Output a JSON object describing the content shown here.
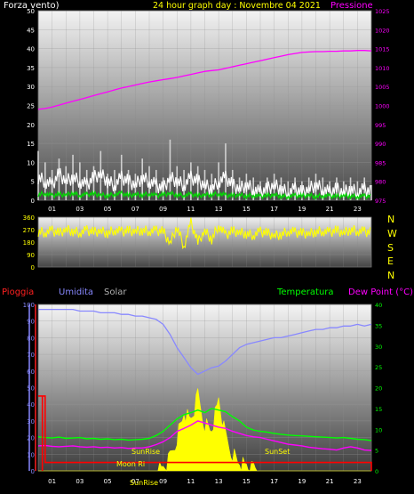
{
  "header": {
    "wind_label": "Forza vento)",
    "title": "24 hour graph day : Novembre 04 2021",
    "pressure_label": "Pressione"
  },
  "x_ticks": [
    "01",
    "03",
    "05",
    "07",
    "09",
    "11",
    "13",
    "15",
    "17",
    "19",
    "21",
    "23"
  ],
  "bottom_x_ticks": [
    "01",
    "03",
    "05",
    "07",
    "09",
    "11",
    "13",
    "15",
    "17",
    "19",
    "21",
    "23"
  ],
  "direction_labels": [
    "N",
    "W",
    "S",
    "E",
    "N"
  ],
  "bottom_header": {
    "rain": "Pioggia",
    "humidity": "Umidita",
    "solar": "Solar",
    "temperature": "Temperatura",
    "dewpoint": "Dew Point (°C)"
  },
  "annotations": {
    "sunrise": "SunRise",
    "sunset": "SunSet",
    "moonrise": "Moon Ri",
    "sunrise_bottom": "SunRise"
  },
  "colors": {
    "wind": "#ffffff",
    "gust": "#d0d0d0",
    "wind_avg": "#00dd00",
    "pressure": "#ff00ff",
    "direction": "#ffff00",
    "humidity": "#8888ff",
    "temperature": "#00ff00",
    "dewpoint": "#ff00ff",
    "rain": "#ff0000",
    "solar": "#ffff00"
  },
  "chart_data": [
    {
      "type": "line",
      "name": "wind-pressure",
      "ylim": [
        0,
        50
      ],
      "yticks": [
        0,
        5,
        10,
        15,
        20,
        25,
        30,
        35,
        40,
        45,
        50
      ],
      "y2lim": [
        975,
        1025
      ],
      "y2ticks": [
        975,
        980,
        985,
        990,
        995,
        1000,
        1005,
        1010,
        1015,
        1020,
        1025
      ],
      "x_hours": [
        0,
        0.5,
        1,
        1.5,
        2,
        2.5,
        3,
        3.5,
        4,
        4.5,
        5,
        5.5,
        6,
        6.5,
        7,
        7.5,
        8,
        8.5,
        9,
        9.5,
        10,
        10.5,
        11,
        11.5,
        12,
        12.5,
        13,
        13.5,
        14,
        14.5,
        15,
        15.5,
        16,
        16.5,
        17,
        17.5,
        18,
        18.5,
        19,
        19.5,
        20,
        20.5,
        21,
        21.5,
        22,
        22.5,
        23,
        23.5,
        24
      ],
      "series": [
        {
          "key": "wind",
          "values": [
            6,
            5,
            4,
            7,
            5,
            6,
            5,
            4,
            6,
            7,
            5,
            4,
            6,
            5,
            4,
            6,
            5,
            4,
            3,
            6,
            5,
            4,
            6,
            5,
            4,
            3,
            5,
            6,
            4,
            3,
            4,
            3,
            2,
            3,
            4,
            3,
            2,
            3,
            2,
            3,
            4,
            3,
            2,
            3,
            2,
            3,
            2,
            3,
            2
          ]
        },
        {
          "key": "gust",
          "values": [
            13,
            10,
            8,
            11,
            9,
            12,
            10,
            8,
            9,
            13,
            7,
            8,
            12,
            8,
            7,
            11,
            9,
            8,
            6,
            16,
            9,
            8,
            10,
            9,
            8,
            7,
            10,
            15,
            8,
            6,
            7,
            6,
            5,
            6,
            7,
            6,
            5,
            6,
            5,
            6,
            7,
            6,
            5,
            6,
            5,
            6,
            5,
            6,
            4
          ]
        },
        {
          "key": "wind_avg",
          "values": [
            1.5,
            1.8,
            1.2,
            1.6,
            1.4,
            1.9,
            1.3,
            1.5,
            1.7,
            1.4,
            1.2,
            1.6,
            1.8,
            1.3,
            1.5,
            1.4,
            1.7,
            1.2,
            1.5,
            1.8,
            1.4,
            1.3,
            1.6,
            1.2,
            1.4,
            1.5,
            1.7,
            1.3,
            1.2,
            1.4,
            1.1,
            1.3,
            1.0,
            1.2,
            1.4,
            1.1,
            1.0,
            1.2,
            1.1,
            1.3,
            1.0,
            1.2,
            1.1,
            1.0,
            1.2,
            1.1,
            1.0,
            1.1,
            1.0
          ]
        },
        {
          "key": "pressure",
          "axis": "y2",
          "values": [
            999,
            999.2,
            999.6,
            1000.1,
            1000.6,
            1001.1,
            1001.6,
            1002.1,
            1002.6,
            1003.1,
            1003.6,
            1004.1,
            1004.6,
            1005.0,
            1005.4,
            1005.8,
            1006.2,
            1006.5,
            1006.8,
            1007.1,
            1007.4,
            1007.8,
            1008.2,
            1008.6,
            1009.0,
            1009.2,
            1009.4,
            1009.8,
            1010.2,
            1010.6,
            1011.0,
            1011.4,
            1011.8,
            1012.2,
            1012.6,
            1013.0,
            1013.4,
            1013.7,
            1014.0,
            1014.1,
            1014.2,
            1014.2,
            1014.3,
            1014.3,
            1014.4,
            1014.4,
            1014.5,
            1014.5,
            1014.4
          ]
        }
      ]
    },
    {
      "type": "line",
      "name": "wind-direction",
      "ylim": [
        0,
        360
      ],
      "yticks": [
        0,
        90,
        180,
        270,
        360
      ],
      "series": [
        {
          "key": "direction",
          "values": [
            255,
            250,
            262,
            245,
            270,
            258,
            248,
            265,
            252,
            260,
            245,
            268,
            255,
            262,
            258,
            265,
            260,
            262,
            258,
            170,
            290,
            150,
            320,
            180,
            260,
            200,
            300,
            230,
            260,
            250,
            240,
            230,
            255,
            245,
            225,
            235,
            260,
            250,
            245,
            240,
            255,
            260,
            250,
            265,
            245,
            270,
            260,
            255,
            250
          ]
        }
      ]
    },
    {
      "type": "line",
      "name": "temp-humidity",
      "ylim": [
        0,
        100
      ],
      "yticks": [
        0,
        10,
        20,
        30,
        40,
        50,
        60,
        70,
        80,
        90,
        100
      ],
      "y2lim": [
        0,
        40
      ],
      "y2ticks": [
        0,
        5,
        10,
        15,
        20,
        25,
        30,
        35,
        40
      ],
      "series": [
        {
          "key": "humidity",
          "values": [
            97,
            97,
            97,
            97,
            97,
            97,
            96,
            96,
            96,
            95,
            95,
            95,
            94,
            94,
            93,
            93,
            92,
            91,
            88,
            82,
            74,
            68,
            62,
            58,
            60,
            62,
            63,
            66,
            70,
            74,
            76,
            77,
            78,
            79,
            80,
            80,
            81,
            82,
            83,
            84,
            85,
            85,
            86,
            86,
            87,
            87,
            88,
            87,
            88
          ]
        },
        {
          "key": "temperature",
          "axis": "y2",
          "values": [
            8.2,
            8.0,
            7.9,
            8.1,
            7.8,
            7.9,
            8.0,
            7.7,
            7.8,
            7.6,
            7.7,
            7.5,
            7.6,
            7.4,
            7.5,
            7.6,
            7.8,
            8.5,
            9.5,
            11,
            12.5,
            13.5,
            14,
            14.6,
            14,
            15,
            14.6,
            14.2,
            13,
            12,
            10.5,
            9.8,
            9.5,
            9.3,
            9.0,
            8.8,
            8.6,
            8.5,
            8.4,
            8.3,
            8.2,
            8.1,
            8.0,
            7.9,
            8.0,
            7.8,
            7.6,
            7.5,
            7.3
          ]
        },
        {
          "key": "dewpoint",
          "axis": "y2",
          "values": [
            6.0,
            6.1,
            5.9,
            5.8,
            5.9,
            6.0,
            5.8,
            5.7,
            5.8,
            5.6,
            5.7,
            5.5,
            5.6,
            5.4,
            5.5,
            5.5,
            5.8,
            6.3,
            7.0,
            8.0,
            9.5,
            10.2,
            11,
            12,
            11.5,
            11,
            10.5,
            10.2,
            9.5,
            9.0,
            8.5,
            8.2,
            8.0,
            7.6,
            7.2,
            6.8,
            6.4,
            6.2,
            6.0,
            5.7,
            5.5,
            5.3,
            5.2,
            5.0,
            5.5,
            5.8,
            5.5,
            5.0,
            4.9
          ]
        },
        {
          "key": "rain",
          "values": [
            45,
            5,
            5,
            5,
            5,
            5,
            5,
            5,
            5,
            5,
            5,
            5,
            5,
            5,
            5,
            5,
            5,
            5,
            5,
            5,
            5,
            5,
            5,
            5,
            5,
            5,
            5,
            5,
            5,
            5,
            5,
            5,
            5,
            5,
            5,
            5,
            5,
            5,
            5,
            5,
            5,
            5,
            5,
            5,
            5,
            5,
            5,
            5,
            0
          ]
        },
        {
          "key": "solar",
          "axis": "y2",
          "values": [
            0,
            0,
            0,
            0,
            0,
            0,
            0,
            0,
            0,
            0,
            0,
            0,
            0,
            0,
            0,
            0,
            0,
            0,
            0.5,
            3,
            8,
            14,
            12,
            18,
            11,
            10,
            17,
            8,
            4,
            2,
            1,
            0.3,
            0,
            0,
            0,
            0,
            0,
            0,
            0,
            0,
            0,
            0,
            0,
            0,
            0,
            0,
            0,
            0,
            0
          ]
        }
      ]
    }
  ]
}
